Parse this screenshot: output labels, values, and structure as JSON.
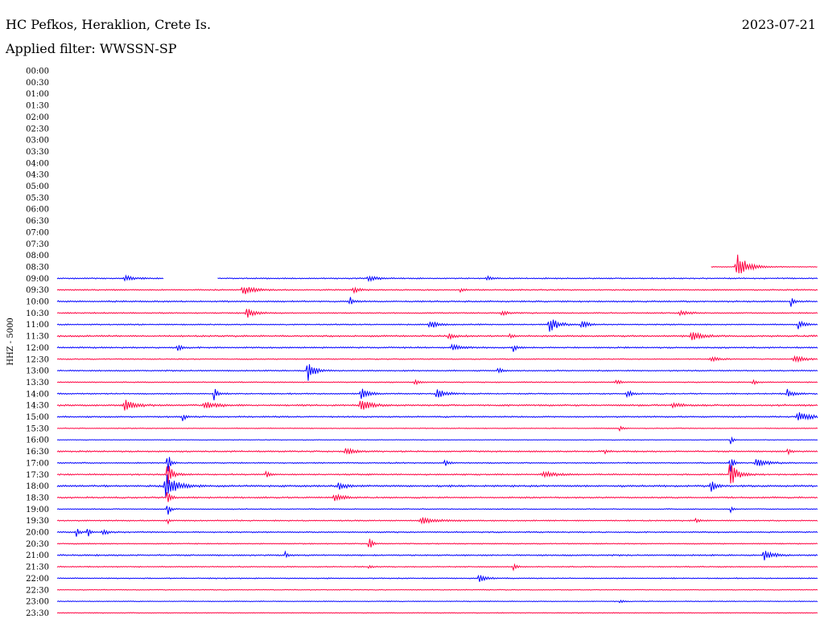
{
  "header": {
    "station": "HC Pefkos, Heraklion, Crete Is.",
    "date": "2023-07-21",
    "filter": "Applied filter: WWSSN-SP"
  },
  "chart_data": {
    "type": "line",
    "title": "HC Pefkos, Heraklion, Crete Is.",
    "subtitle": "Applied filter: WWSSN-SP",
    "date": "2023-07-21",
    "ylabel": "HHZ - 5000",
    "x_range_minutes": [
      0,
      30
    ],
    "grid": false,
    "row_labels": [
      "00:00",
      "00:30",
      "01:00",
      "01:30",
      "02:00",
      "02:30",
      "03:00",
      "03:30",
      "04:00",
      "04:30",
      "05:00",
      "05:30",
      "06:00",
      "06:30",
      "07:00",
      "07:30",
      "08:00",
      "08:30",
      "09:00",
      "09:30",
      "10:00",
      "10:30",
      "11:00",
      "11:30",
      "12:00",
      "12:30",
      "13:00",
      "13:30",
      "14:00",
      "14:30",
      "15:00",
      "15:30",
      "16:00",
      "16:30",
      "17:00",
      "17:30",
      "18:00",
      "18:30",
      "19:00",
      "19:30",
      "20:00",
      "20:30",
      "21:00",
      "21:30",
      "22:00",
      "22:30",
      "23:00",
      "23:30"
    ],
    "colors": {
      "even": "#0000ff",
      "odd": "#ff0040"
    },
    "traces": [
      {
        "row": "08:30",
        "start_frac": 0.86,
        "end_frac": 1.0,
        "noise": 0.4,
        "events": [
          {
            "pos": 0.895,
            "amp": 16,
            "width": 0.012
          }
        ]
      },
      {
        "row": "09:00",
        "start_frac": 0.0,
        "end_frac": 1.0,
        "gaps": [
          [
            0.14,
            0.21
          ]
        ],
        "noise": 0.6,
        "events": [
          {
            "pos": 0.09,
            "amp": 3,
            "width": 0.01
          },
          {
            "pos": 0.41,
            "amp": 3,
            "width": 0.01
          },
          {
            "pos": 0.565,
            "amp": 3,
            "width": 0.006
          }
        ]
      },
      {
        "row": "09:30",
        "noise": 0.6,
        "events": [
          {
            "pos": 0.245,
            "amp": 6,
            "width": 0.012
          },
          {
            "pos": 0.39,
            "amp": 4,
            "width": 0.006
          },
          {
            "pos": 0.53,
            "amp": 3,
            "width": 0.004
          }
        ]
      },
      {
        "row": "10:00",
        "noise": 0.7,
        "events": [
          {
            "pos": 0.385,
            "amp": 6,
            "width": 0.004
          },
          {
            "pos": 0.965,
            "amp": 7,
            "width": 0.004
          }
        ]
      },
      {
        "row": "10:30",
        "noise": 0.6,
        "events": [
          {
            "pos": 0.25,
            "amp": 6,
            "width": 0.01
          },
          {
            "pos": 0.585,
            "amp": 3,
            "width": 0.008
          },
          {
            "pos": 0.82,
            "amp": 3,
            "width": 0.01
          }
        ]
      },
      {
        "row": "11:00",
        "noise": 0.6,
        "events": [
          {
            "pos": 0.49,
            "amp": 6,
            "width": 0.008
          },
          {
            "pos": 0.648,
            "amp": 9,
            "width": 0.01
          },
          {
            "pos": 0.69,
            "amp": 6,
            "width": 0.006
          },
          {
            "pos": 0.975,
            "amp": 6,
            "width": 0.006
          }
        ]
      },
      {
        "row": "11:30",
        "noise": 0.8,
        "events": [
          {
            "pos": 0.515,
            "amp": 4,
            "width": 0.006
          },
          {
            "pos": 0.595,
            "amp": 3,
            "width": 0.004
          },
          {
            "pos": 0.835,
            "amp": 5,
            "width": 0.012
          }
        ]
      },
      {
        "row": "12:00",
        "noise": 0.7,
        "events": [
          {
            "pos": 0.158,
            "amp": 7,
            "width": 0.004
          },
          {
            "pos": 0.52,
            "amp": 4,
            "width": 0.01
          },
          {
            "pos": 0.6,
            "amp": 6,
            "width": 0.004
          }
        ]
      },
      {
        "row": "12:30",
        "noise": 0.5,
        "events": [
          {
            "pos": 0.86,
            "amp": 3,
            "width": 0.01
          },
          {
            "pos": 0.97,
            "amp": 4,
            "width": 0.012
          }
        ]
      },
      {
        "row": "13:00",
        "noise": 0.6,
        "events": [
          {
            "pos": 0.33,
            "amp": 13,
            "width": 0.008
          },
          {
            "pos": 0.58,
            "amp": 4,
            "width": 0.004
          }
        ]
      },
      {
        "row": "13:30",
        "noise": 0.5,
        "events": [
          {
            "pos": 0.47,
            "amp": 3,
            "width": 0.006
          },
          {
            "pos": 0.735,
            "amp": 3,
            "width": 0.006
          },
          {
            "pos": 0.915,
            "amp": 4,
            "width": 0.004
          }
        ]
      },
      {
        "row": "14:00",
        "noise": 0.6,
        "events": [
          {
            "pos": 0.206,
            "amp": 9,
            "width": 0.004
          },
          {
            "pos": 0.4,
            "amp": 7,
            "width": 0.01
          },
          {
            "pos": 0.5,
            "amp": 6,
            "width": 0.01
          },
          {
            "pos": 0.75,
            "amp": 5,
            "width": 0.006
          },
          {
            "pos": 0.96,
            "amp": 6,
            "width": 0.006
          }
        ]
      },
      {
        "row": "14:30",
        "noise": 0.8,
        "events": [
          {
            "pos": 0.09,
            "amp": 7,
            "width": 0.012
          },
          {
            "pos": 0.195,
            "amp": 5,
            "width": 0.012
          },
          {
            "pos": 0.4,
            "amp": 7,
            "width": 0.012
          },
          {
            "pos": 0.81,
            "amp": 3,
            "width": 0.01
          }
        ]
      },
      {
        "row": "15:00",
        "noise": 0.7,
        "events": [
          {
            "pos": 0.165,
            "amp": 5,
            "width": 0.004
          },
          {
            "pos": 0.975,
            "amp": 6,
            "width": 0.014
          }
        ]
      },
      {
        "row": "15:30",
        "noise": 0.4,
        "events": [
          {
            "pos": 0.74,
            "amp": 4,
            "width": 0.003
          }
        ]
      },
      {
        "row": "16:00",
        "noise": 0.3,
        "events": [
          {
            "pos": 0.885,
            "amp": 14,
            "width": 0.002
          }
        ]
      },
      {
        "row": "16:30",
        "noise": 0.7,
        "events": [
          {
            "pos": 0.38,
            "amp": 4,
            "width": 0.01
          },
          {
            "pos": 0.72,
            "amp": 3,
            "width": 0.004
          },
          {
            "pos": 0.96,
            "amp": 4,
            "width": 0.004
          }
        ]
      },
      {
        "row": "17:00",
        "noise": 0.6,
        "events": [
          {
            "pos": 0.145,
            "amp": 20,
            "width": 0.003
          },
          {
            "pos": 0.51,
            "amp": 4,
            "width": 0.004
          },
          {
            "pos": 0.885,
            "amp": 14,
            "width": 0.003
          },
          {
            "pos": 0.92,
            "amp": 5,
            "width": 0.012
          }
        ]
      },
      {
        "row": "17:30",
        "noise": 0.7,
        "events": [
          {
            "pos": 0.145,
            "amp": 16,
            "width": 0.006
          },
          {
            "pos": 0.275,
            "amp": 4,
            "width": 0.004
          },
          {
            "pos": 0.64,
            "amp": 4,
            "width": 0.014
          },
          {
            "pos": 0.885,
            "amp": 16,
            "width": 0.008
          }
        ]
      },
      {
        "row": "18:00",
        "noise": 0.9,
        "events": [
          {
            "pos": 0.143,
            "amp": 15,
            "width": 0.012
          },
          {
            "pos": 0.37,
            "amp": 4,
            "width": 0.01
          },
          {
            "pos": 0.86,
            "amp": 7,
            "width": 0.006
          }
        ]
      },
      {
        "row": "18:30",
        "noise": 0.7,
        "events": [
          {
            "pos": 0.145,
            "amp": 12,
            "width": 0.004
          },
          {
            "pos": 0.365,
            "amp": 5,
            "width": 0.01
          }
        ]
      },
      {
        "row": "19:00",
        "noise": 0.5,
        "events": [
          {
            "pos": 0.145,
            "amp": 10,
            "width": 0.003
          },
          {
            "pos": 0.885,
            "amp": 9,
            "width": 0.002
          }
        ]
      },
      {
        "row": "19:30",
        "noise": 0.6,
        "events": [
          {
            "pos": 0.145,
            "amp": 6,
            "width": 0.002
          },
          {
            "pos": 0.48,
            "amp": 4,
            "width": 0.018
          },
          {
            "pos": 0.84,
            "amp": 3,
            "width": 0.004
          }
        ]
      },
      {
        "row": "20:00",
        "noise": 0.6,
        "events": [
          {
            "pos": 0.025,
            "amp": 6,
            "width": 0.004
          },
          {
            "pos": 0.04,
            "amp": 7,
            "width": 0.003
          },
          {
            "pos": 0.06,
            "amp": 4,
            "width": 0.006
          }
        ]
      },
      {
        "row": "20:30",
        "noise": 0.5,
        "events": [
          {
            "pos": 0.41,
            "amp": 14,
            "width": 0.003
          }
        ]
      },
      {
        "row": "21:00",
        "noise": 0.7,
        "events": [
          {
            "pos": 0.3,
            "amp": 4,
            "width": 0.003
          },
          {
            "pos": 0.93,
            "amp": 7,
            "width": 0.01
          }
        ]
      },
      {
        "row": "21:30",
        "noise": 0.5,
        "events": [
          {
            "pos": 0.41,
            "amp": 3,
            "width": 0.003
          },
          {
            "pos": 0.6,
            "amp": 4,
            "width": 0.004
          }
        ]
      },
      {
        "row": "22:00",
        "noise": 0.5,
        "events": [
          {
            "pos": 0.555,
            "amp": 5,
            "width": 0.008
          }
        ]
      },
      {
        "row": "22:30",
        "noise": 0.4,
        "events": []
      },
      {
        "row": "23:00",
        "noise": 0.4,
        "events": [
          {
            "pos": 0.74,
            "amp": 2,
            "width": 0.004
          }
        ]
      },
      {
        "row": "23:30",
        "noise": 0.4,
        "events": []
      }
    ]
  }
}
